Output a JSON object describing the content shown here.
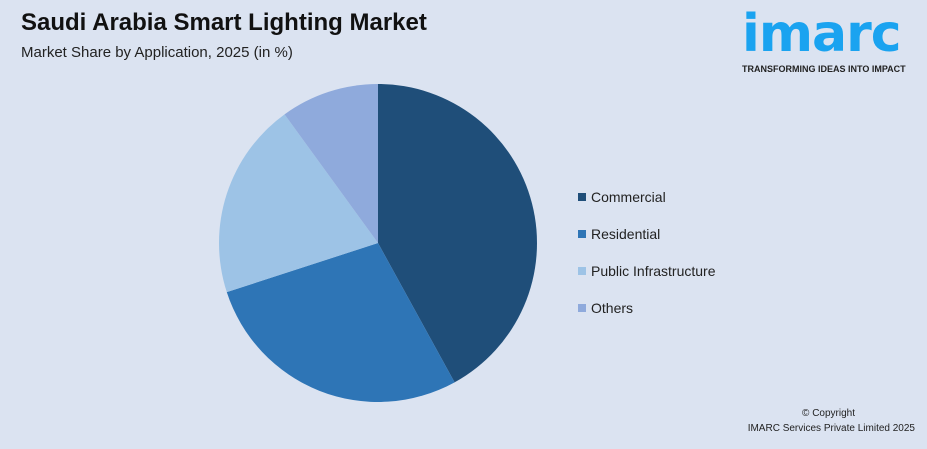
{
  "chart_data": {
    "type": "pie",
    "title": "Saudi Arabia Smart Lighting Market",
    "subtitle": "Market Share by Application, 2025 (in %)",
    "categories": [
      "Commercial",
      "Residential",
      "Public Infrastructure",
      "Others"
    ],
    "values": [
      42,
      28,
      20,
      10
    ],
    "colors": [
      "#1f4e79",
      "#2e75b6",
      "#9dc3e6",
      "#8faadc"
    ],
    "legend_position": "right"
  },
  "logo": {
    "word": "imarc",
    "tagline": "TRANSFORMING IDEAS INTO IMPACT"
  },
  "footer": {
    "copyright": "© Copyright",
    "company": "IMARC Services Private Limited 2025"
  }
}
